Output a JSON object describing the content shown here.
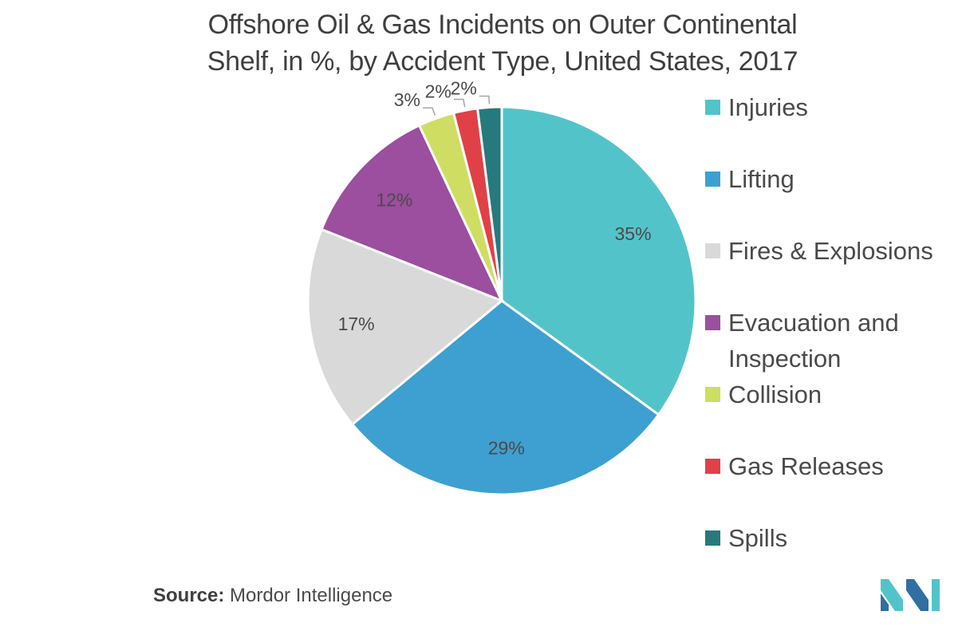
{
  "chart_data": {
    "type": "pie",
    "title_lines": [
      "Offshore Oil & Gas Incidents on Outer Continental",
      "Shelf, in %, by Accident Type, United States, 2017"
    ],
    "categories": [
      "Injuries",
      "Lifting",
      "Fires & Explosions",
      "Evacuation and Inspection",
      "Collision",
      "Gas Releases",
      "Spills"
    ],
    "legend_labels": [
      [
        "Injuries"
      ],
      [
        "Lifting"
      ],
      [
        "Fires & Explosions"
      ],
      [
        "Evacuation and",
        "Inspection"
      ],
      [
        "Collision"
      ],
      [
        "Gas Releases"
      ],
      [
        "Spills"
      ]
    ],
    "values": [
      35,
      29,
      17,
      12,
      3,
      2,
      2
    ],
    "data_labels": [
      "35%",
      "29%",
      "17%",
      "12%",
      "3%",
      "2%",
      "2%"
    ],
    "colors": [
      "#52c4c9",
      "#3ea0d0",
      "#d9d9d9",
      "#9b4f9e",
      "#cfdd62",
      "#e04146",
      "#267a7e"
    ],
    "start": "12 o'clock",
    "direction": "clockwise",
    "legend_position": "right"
  },
  "source": {
    "label": "Source:",
    "text": "Mordor Intelligence"
  },
  "logo": {
    "icon": "mordor-intelligence-logo-icon",
    "colors": [
      "#2f6fa3",
      "#52c4c9"
    ]
  }
}
